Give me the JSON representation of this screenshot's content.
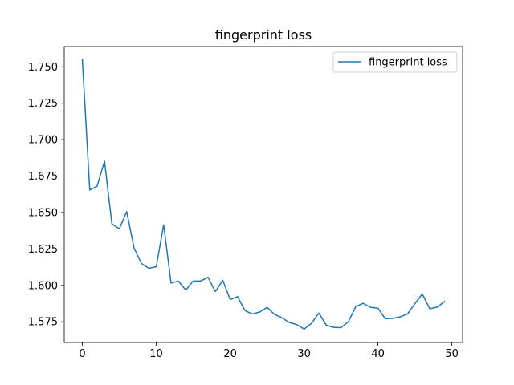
{
  "chart_data": {
    "type": "line",
    "title": "fingerprint loss",
    "xlabel": "",
    "ylabel": "",
    "xlim": [
      -2.45,
      51.45
    ],
    "ylim": [
      1.5608,
      1.7639
    ],
    "xticks": [
      0,
      10,
      20,
      30,
      40,
      50
    ],
    "yticks": [
      1.575,
      1.6,
      1.625,
      1.65,
      1.675,
      1.7,
      1.725,
      1.75
    ],
    "xtick_labels": [
      "0",
      "10",
      "20",
      "30",
      "40",
      "50"
    ],
    "ytick_labels": [
      "1.575",
      "1.600",
      "1.625",
      "1.650",
      "1.675",
      "1.700",
      "1.725",
      "1.750"
    ],
    "grid": false,
    "legend_position": "upper right",
    "series": [
      {
        "name": "fingerprint loss",
        "color": "#1f77b4",
        "x": [
          0,
          1,
          2,
          3,
          4,
          5,
          6,
          7,
          8,
          9,
          10,
          11,
          12,
          13,
          14,
          15,
          16,
          17,
          18,
          19,
          20,
          21,
          22,
          23,
          24,
          25,
          26,
          27,
          28,
          29,
          30,
          31,
          32,
          33,
          34,
          35,
          36,
          37,
          38,
          39,
          40,
          41,
          42,
          43,
          44,
          45,
          46,
          47,
          48,
          49
        ],
        "values": [
          1.7548,
          1.6654,
          1.6681,
          1.6852,
          1.6422,
          1.6388,
          1.6506,
          1.6255,
          1.615,
          1.6117,
          1.6128,
          1.6416,
          1.6016,
          1.6029,
          1.5968,
          1.603,
          1.603,
          1.6055,
          1.5958,
          1.6035,
          1.5903,
          1.5923,
          1.5827,
          1.5804,
          1.5817,
          1.5849,
          1.5801,
          1.5778,
          1.5745,
          1.5731,
          1.57,
          1.5739,
          1.581,
          1.5727,
          1.5712,
          1.571,
          1.575,
          1.5855,
          1.5877,
          1.5849,
          1.5843,
          1.5771,
          1.5773,
          1.5784,
          1.5804,
          1.5875,
          1.5941,
          1.584,
          1.585,
          1.5889
        ]
      }
    ]
  }
}
